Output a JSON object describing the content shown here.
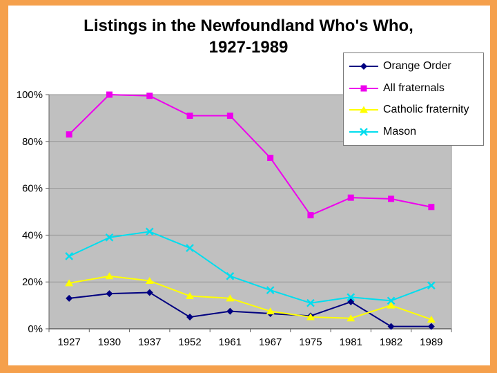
{
  "slide": {
    "title_line1": "Listings in the Newfoundland Who's Who,",
    "title_line2": "1927-1989",
    "frame_color": "#F5A04C",
    "background_color": "#FFFFFF"
  },
  "chart_data": {
    "type": "line",
    "title": "Listings in the Newfoundland Who's Who, 1927-1989",
    "categories": [
      "1927",
      "1930",
      "1937",
      "1952",
      "1961",
      "1967",
      "1975",
      "1981",
      "1982",
      "1989"
    ],
    "series": [
      {
        "name": "Orange Order",
        "color": "#000080",
        "marker": "diamond",
        "values": [
          13,
          15,
          15.5,
          5,
          7.5,
          6.5,
          5.5,
          11.5,
          1,
          1
        ]
      },
      {
        "name": "All fraternals",
        "color": "#EE00EE",
        "marker": "square",
        "values": [
          83,
          100,
          99.5,
          91,
          91,
          73,
          48.5,
          56,
          55.5,
          52
        ]
      },
      {
        "name": "Catholic fraternity",
        "color": "#FFFF00",
        "marker": "triangle",
        "values": [
          19.5,
          22.5,
          20.5,
          14,
          13,
          7.5,
          5,
          4.5,
          10,
          4
        ]
      },
      {
        "name": "Mason",
        "color": "#00DDEE",
        "marker": "x",
        "values": [
          31,
          39,
          41.5,
          34.5,
          22.5,
          16.5,
          11,
          13.5,
          12,
          18.5
        ]
      }
    ],
    "y_ticks": [
      "0%",
      "20%",
      "40%",
      "60%",
      "80%",
      "100%"
    ],
    "ylim": [
      0,
      100
    ],
    "y_tick_step": 20,
    "grid": true,
    "legend_position": "top-right",
    "plot_bg_color": "#C0C0C0",
    "gridline_color": "#969696",
    "axis_color": "#5E5E5E"
  }
}
